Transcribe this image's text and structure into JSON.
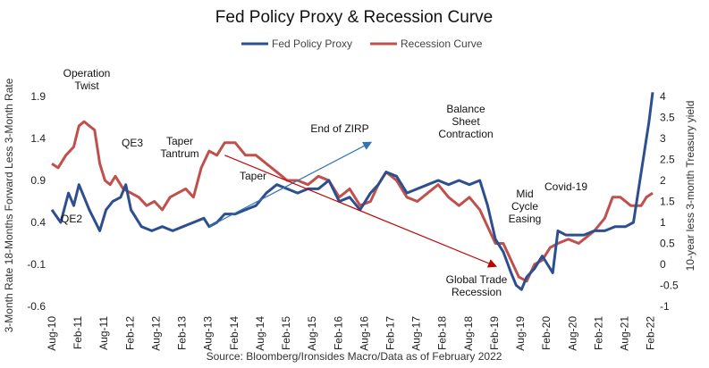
{
  "chart_data": {
    "type": "line",
    "title": "Fed Policy Proxy & Recession Curve",
    "source": "Source: Bloomberg/Ironsides Macro/Data as of February 2022",
    "legend_position": "top-center",
    "grid": false,
    "x_ticks": [
      "Aug-10",
      "Feb-11",
      "Aug-11",
      "Feb-12",
      "Aug-12",
      "Feb-13",
      "Aug-13",
      "Feb-14",
      "Aug-14",
      "Feb-15",
      "Aug-15",
      "Feb-16",
      "Aug-16",
      "Feb-17",
      "Aug-17",
      "Feb-18",
      "Aug-18",
      "Feb-19",
      "Aug-19",
      "Feb-20",
      "Aug-20",
      "Feb-21",
      "Aug-21",
      "Feb-22"
    ],
    "y_left": {
      "label": "3-Month Rate 18-Months Forward Less 3-Month Rate",
      "ticks": [
        "1.9",
        "1.4",
        "0.9",
        "0.4",
        "-0.1",
        "-0.6"
      ],
      "range": [
        -0.6,
        1.9
      ]
    },
    "y_right": {
      "label": "10-year less 3-month Treasury yield",
      "ticks": [
        "4",
        "3.5",
        "3",
        "2.5",
        "2",
        "1.5",
        "1",
        "0.5",
        "0",
        "-0.5",
        "-1"
      ],
      "range": [
        -1,
        4
      ]
    },
    "series": [
      {
        "name": "Fed Policy Proxy",
        "axis": "left",
        "color": "#2E4F8F",
        "x": [
          2010.58,
          2010.75,
          2010.9,
          2011.0,
          2011.1,
          2011.3,
          2011.5,
          2011.62,
          2011.75,
          2011.9,
          2012.0,
          2012.1,
          2012.3,
          2012.5,
          2012.7,
          2012.9,
          2013.1,
          2013.3,
          2013.5,
          2013.6,
          2013.75,
          2013.9,
          2014.1,
          2014.3,
          2014.5,
          2014.7,
          2014.9,
          2015.1,
          2015.3,
          2015.5,
          2015.7,
          2015.9,
          2016.1,
          2016.3,
          2016.5,
          2016.7,
          2016.85,
          2017.0,
          2017.2,
          2017.4,
          2017.6,
          2017.8,
          2018.0,
          2018.2,
          2018.4,
          2018.6,
          2018.8,
          2018.95,
          2019.1,
          2019.25,
          2019.4,
          2019.5,
          2019.6,
          2019.7,
          2019.85,
          2020.0,
          2020.1,
          2020.2,
          2020.3,
          2020.45,
          2020.6,
          2020.8,
          2021.0,
          2021.2,
          2021.4,
          2021.6,
          2021.75,
          2021.85,
          2021.95,
          2022.05,
          2022.12
        ],
        "values": [
          0.55,
          0.4,
          0.75,
          0.6,
          0.85,
          0.55,
          0.3,
          0.55,
          0.65,
          0.7,
          0.85,
          0.55,
          0.35,
          0.3,
          0.35,
          0.3,
          0.35,
          0.4,
          0.45,
          0.35,
          0.4,
          0.5,
          0.5,
          0.55,
          0.6,
          0.75,
          0.85,
          0.8,
          0.75,
          0.8,
          0.8,
          0.9,
          0.65,
          0.7,
          0.55,
          0.75,
          0.85,
          1.0,
          0.95,
          0.75,
          0.8,
          0.85,
          0.9,
          0.85,
          0.9,
          0.85,
          0.9,
          0.6,
          0.2,
          0.05,
          -0.2,
          -0.35,
          -0.4,
          -0.25,
          -0.15,
          0.0,
          -0.1,
          -0.2,
          0.3,
          0.25,
          0.25,
          0.25,
          0.3,
          0.3,
          0.35,
          0.35,
          0.4,
          0.8,
          1.2,
          1.6,
          1.95
        ]
      },
      {
        "name": "Recession Curve",
        "axis": "right",
        "color": "#C0504D",
        "x": [
          2010.58,
          2010.7,
          2010.85,
          2011.0,
          2011.1,
          2011.2,
          2011.3,
          2011.4,
          2011.5,
          2011.6,
          2011.7,
          2011.8,
          2011.95,
          2012.1,
          2012.25,
          2012.4,
          2012.55,
          2012.7,
          2012.85,
          2013.0,
          2013.15,
          2013.3,
          2013.45,
          2013.6,
          2013.75,
          2013.9,
          2014.1,
          2014.3,
          2014.5,
          2014.7,
          2014.9,
          2015.1,
          2015.3,
          2015.5,
          2015.7,
          2015.9,
          2016.1,
          2016.3,
          2016.5,
          2016.7,
          2016.85,
          2017.0,
          2017.2,
          2017.4,
          2017.6,
          2017.8,
          2018.0,
          2018.2,
          2018.4,
          2018.6,
          2018.8,
          2018.95,
          2019.1,
          2019.25,
          2019.4,
          2019.55,
          2019.7,
          2019.85,
          2020.0,
          2020.15,
          2020.3,
          2020.5,
          2020.7,
          2020.9,
          2021.0,
          2021.2,
          2021.35,
          2021.5,
          2021.7,
          2021.9,
          2022.0,
          2022.12
        ],
        "values": [
          2.4,
          2.3,
          2.6,
          2.8,
          3.3,
          3.4,
          3.3,
          3.2,
          2.4,
          2.0,
          1.9,
          2.1,
          1.8,
          1.7,
          1.6,
          1.4,
          1.5,
          1.3,
          1.6,
          1.7,
          1.8,
          1.6,
          2.3,
          2.7,
          2.6,
          2.9,
          2.9,
          2.6,
          2.6,
          2.4,
          2.2,
          2.0,
          2.0,
          1.9,
          2.1,
          2.0,
          1.6,
          1.8,
          1.4,
          1.5,
          1.9,
          2.2,
          2.0,
          1.6,
          1.5,
          1.7,
          1.9,
          1.6,
          1.4,
          1.6,
          1.3,
          0.9,
          0.5,
          0.5,
          0.1,
          -0.3,
          -0.4,
          0.0,
          0.1,
          0.4,
          0.5,
          0.6,
          0.5,
          0.7,
          0.8,
          1.1,
          1.6,
          1.6,
          1.4,
          1.4,
          1.6,
          1.7
        ]
      }
    ],
    "annotations": [
      {
        "lines": [
          "Operation",
          "Twist"
        ]
      },
      {
        "lines": [
          "QE2"
        ]
      },
      {
        "lines": [
          "QE3"
        ]
      },
      {
        "lines": [
          "Taper",
          "Tantrum"
        ]
      },
      {
        "lines": [
          "Taper"
        ]
      },
      {
        "lines": [
          "End of ZIRP"
        ]
      },
      {
        "lines": [
          "Balance",
          "Sheet",
          "Contraction"
        ]
      },
      {
        "lines": [
          "Mid",
          "Cycle",
          "Easing"
        ]
      },
      {
        "lines": [
          "Covid-19"
        ]
      },
      {
        "lines": [
          "Global Trade",
          "Recession"
        ]
      }
    ],
    "trend_arrows": [
      {
        "name": "blue-trend-arrow",
        "color": "#2E75B6",
        "from": [
          2013.6,
          0.35
        ],
        "to": [
          2016.7,
          1.35
        ],
        "axis": "left"
      },
      {
        "name": "red-trend-arrow",
        "color": "#C00000",
        "from": [
          2013.9,
          1.2
        ],
        "to": [
          2019.1,
          -0.12
        ],
        "axis": "left"
      }
    ]
  }
}
